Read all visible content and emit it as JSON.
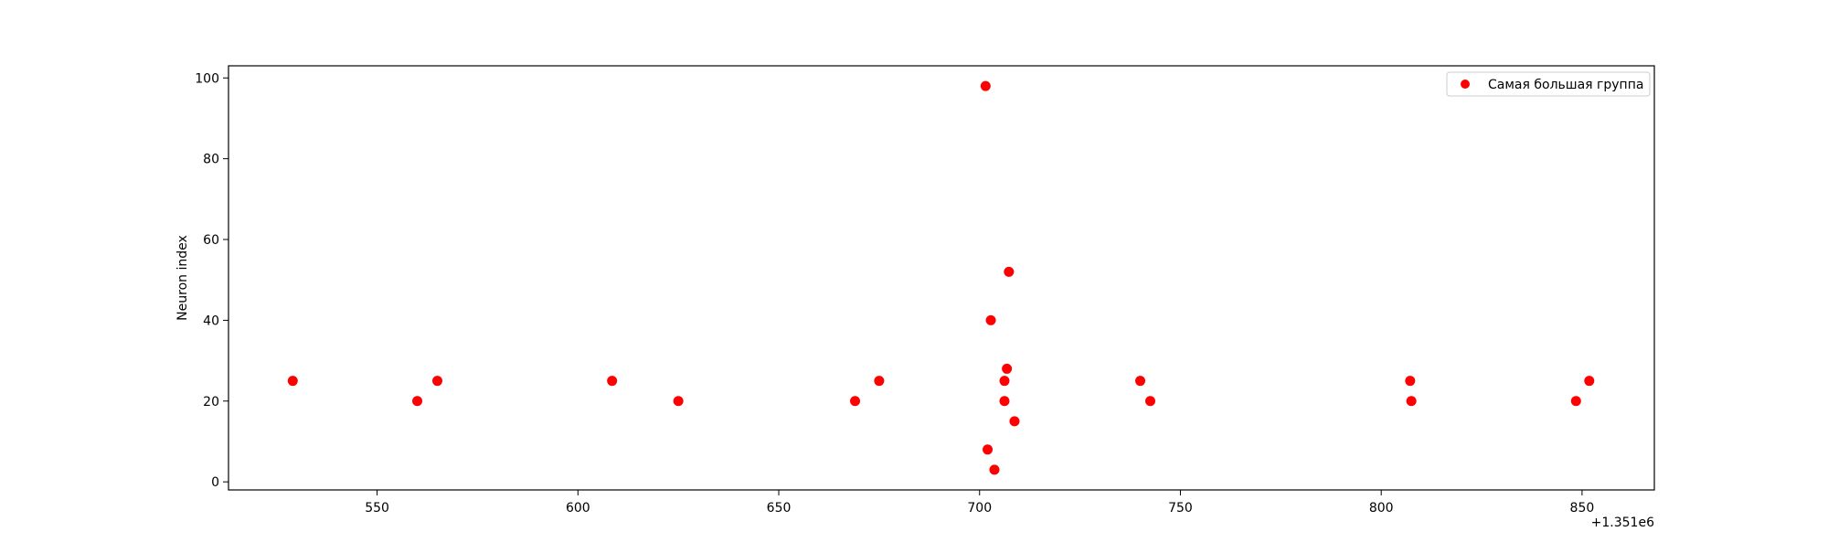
{
  "chart_data": {
    "type": "scatter",
    "title": "",
    "xlabel": "",
    "ylabel": "Neuron index",
    "x_offset_label": "+1.351e6",
    "xlim": [
      513,
      868
    ],
    "ylim": [
      -2,
      103
    ],
    "x_ticks": [
      550,
      600,
      650,
      700,
      750,
      800,
      850
    ],
    "y_ticks": [
      0,
      20,
      40,
      60,
      80,
      100
    ],
    "grid": false,
    "legend_position": "top-right",
    "series": [
      {
        "name": "Самая большая группа",
        "color": "#ff0000",
        "points": [
          {
            "x": 529,
            "y": 25
          },
          {
            "x": 560,
            "y": 20
          },
          {
            "x": 565,
            "y": 25
          },
          {
            "x": 608.5,
            "y": 25
          },
          {
            "x": 625,
            "y": 20
          },
          {
            "x": 669,
            "y": 20
          },
          {
            "x": 675,
            "y": 25
          },
          {
            "x": 701.5,
            "y": 98
          },
          {
            "x": 702,
            "y": 8
          },
          {
            "x": 702.8,
            "y": 40
          },
          {
            "x": 703.7,
            "y": 3
          },
          {
            "x": 706.2,
            "y": 25
          },
          {
            "x": 706.2,
            "y": 20
          },
          {
            "x": 706.8,
            "y": 28
          },
          {
            "x": 707.3,
            "y": 52
          },
          {
            "x": 708.7,
            "y": 15
          },
          {
            "x": 740,
            "y": 25
          },
          {
            "x": 742.5,
            "y": 20
          },
          {
            "x": 807.2,
            "y": 25
          },
          {
            "x": 807.5,
            "y": 20
          },
          {
            "x": 848.5,
            "y": 20
          },
          {
            "x": 851.8,
            "y": 25
          }
        ]
      }
    ]
  }
}
